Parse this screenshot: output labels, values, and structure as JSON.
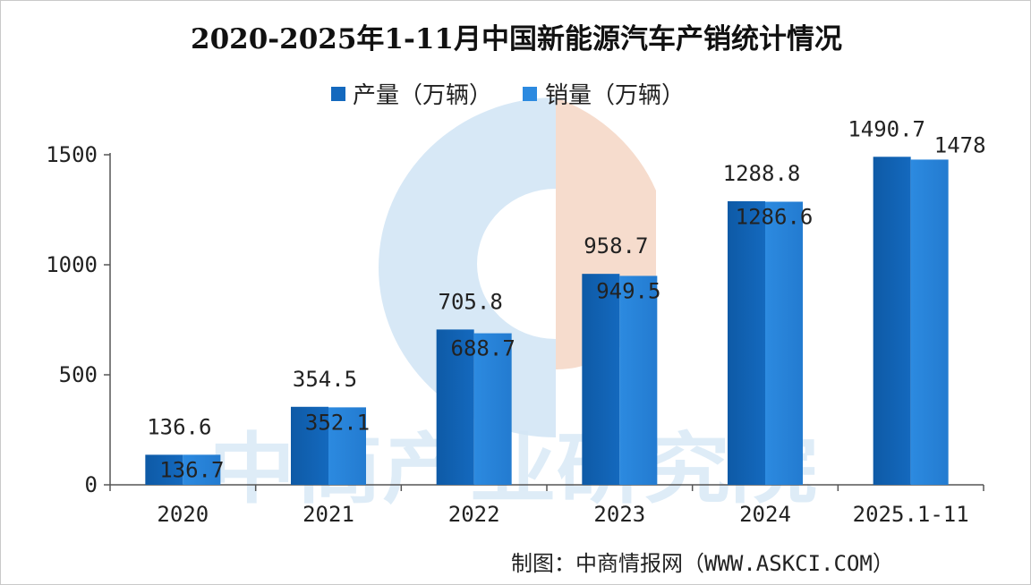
{
  "colors": {
    "production": "#1469be",
    "production_dark": "#0e5aa6",
    "sales": "#2c8ae0",
    "sales_dark": "#237bd0",
    "axis": "#555555",
    "watermark_blue": "#d7e8f6",
    "watermark_orange": "#f6dccd"
  },
  "watermark": {
    "text": "中商产业研究院",
    "logo_icon": "askci-logo-icon"
  },
  "source_note": "制图：中商情报网（WWW.ASKCI.COM）",
  "chart_data": {
    "type": "bar",
    "title": "2020-2025年1-11月中国新能源汽车产销统计情况",
    "xlabel": "",
    "ylabel": "",
    "categories": [
      "2020",
      "2021",
      "2022",
      "2023",
      "2024",
      "2025.1-11"
    ],
    "series": [
      {
        "name": "产量（万辆）",
        "values": [
          136.6,
          354.5,
          705.8,
          958.7,
          1288.8,
          1490.7
        ],
        "labels": [
          "136.6",
          "354.5",
          "705.8",
          "958.7",
          "1288.8",
          "1490.7"
        ]
      },
      {
        "name": "销量（万辆）",
        "values": [
          136.7,
          352.1,
          688.7,
          949.5,
          1286.6,
          1478
        ],
        "labels": [
          "136.7",
          "352.1",
          "688.7",
          "949.5",
          "1286.6",
          "1478"
        ]
      }
    ],
    "ylim": [
      0,
      1500
    ],
    "yticks": [
      0,
      500,
      1000,
      1500
    ],
    "ytick_labels": [
      "0",
      "500",
      "1000",
      "1500"
    ],
    "grid": false,
    "legend": "top-center"
  }
}
